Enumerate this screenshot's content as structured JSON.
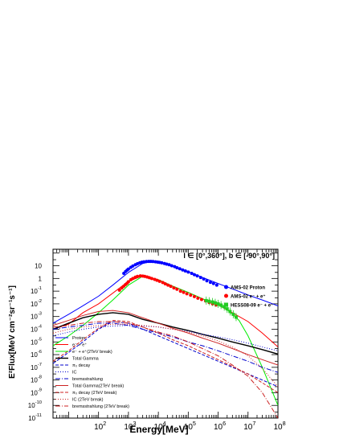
{
  "chart_data": {
    "type": "line",
    "title": "l ∈ [0°,360°], b ∈ [-90°,90°]",
    "xlabel": "Energy[MeV]",
    "ylabel": "E²Flux[MeV cm⁻²sr⁻¹s⁻¹]",
    "xscale": "log",
    "yscale": "log",
    "xlim": [
      3,
      100000000
    ],
    "ylim": [
      1e-11,
      200
    ],
    "x_ticks": [
      {
        "value": 100,
        "base": "10",
        "exp": "2"
      },
      {
        "value": 1000,
        "base": "10",
        "exp": "3"
      },
      {
        "value": 10000,
        "base": "10",
        "exp": "4"
      },
      {
        "value": 100000,
        "base": "10",
        "exp": "5"
      },
      {
        "value": 1000000,
        "base": "10",
        "exp": "6"
      },
      {
        "value": 10000000,
        "base": "10",
        "exp": "7"
      },
      {
        "value": 100000000,
        "base": "10",
        "exp": "8"
      }
    ],
    "y_ticks": [
      {
        "value": 10,
        "base": "10",
        "exp": ""
      },
      {
        "value": 1,
        "base": "1",
        "exp": ""
      },
      {
        "value": 0.1,
        "base": "10",
        "exp": "-1"
      },
      {
        "value": 0.01,
        "base": "10",
        "exp": "-2"
      },
      {
        "value": 0.001,
        "base": "10",
        "exp": "-3"
      },
      {
        "value": 0.0001,
        "base": "10",
        "exp": "-4"
      },
      {
        "value": 1e-05,
        "base": "10",
        "exp": "-5"
      },
      {
        "value": 1e-06,
        "base": "10",
        "exp": "-6"
      },
      {
        "value": 1e-07,
        "base": "10",
        "exp": "-7"
      },
      {
        "value": 1e-08,
        "base": "10",
        "exp": "-8"
      },
      {
        "value": 1e-09,
        "base": "10",
        "exp": "-9"
      },
      {
        "value": 1e-10,
        "base": "10",
        "exp": "-10"
      },
      {
        "value": 1e-11,
        "base": "10",
        "exp": "-11"
      }
    ],
    "grid": false,
    "legend_placement": "bottom-left",
    "series": [
      {
        "name": "Proton",
        "color": "#0000ff",
        "dash": "",
        "width": 1,
        "x": [
          3,
          10,
          30,
          100,
          300,
          1000,
          3000,
          6000,
          10000,
          30000,
          100000,
          300000,
          1000000,
          3000000,
          10000000,
          30000000,
          100000000
        ],
        "y": [
          0.0003,
          0.0015,
          0.007,
          0.04,
          0.3,
          3,
          15,
          22,
          20,
          10,
          3.5,
          1.2,
          0.4,
          0.15,
          0.05,
          0.02,
          0.007
        ]
      },
      {
        "name": "e⁻ + e⁺",
        "color": "#ff0000",
        "dash": "",
        "width": 1,
        "x": [
          3,
          10,
          30,
          100,
          300,
          1000,
          3000,
          10000,
          30000,
          100000,
          300000,
          1000000,
          3000000,
          10000000,
          30000000,
          100000000
        ],
        "y": [
          0.0001,
          0.00025,
          0.002,
          0.01,
          0.07,
          0.6,
          1.6,
          0.8,
          0.25,
          0.08,
          0.025,
          0.008,
          0.002,
          0.0004,
          5e-05,
          4e-06
        ]
      },
      {
        "name": "e⁻ + e⁺(2TeV break)",
        "color": "#00ee00",
        "dash": "",
        "width": 1,
        "x": [
          3,
          10,
          30,
          100,
          300,
          1000,
          3000,
          10000,
          30000,
          100000,
          300000,
          1000000,
          2000000,
          5000000,
          10000000,
          30000000,
          100000000
        ],
        "y": [
          5e-06,
          3e-05,
          0.0002,
          0.002,
          0.02,
          0.3,
          1.5,
          0.8,
          0.25,
          0.08,
          0.025,
          0.008,
          0.0035,
          0.0005,
          3e-05,
          1e-07,
          1e-10
        ]
      },
      {
        "name": "Total Gamma",
        "color": "#000000",
        "dash": "",
        "width": 1.4,
        "x": [
          3,
          10,
          30,
          100,
          300,
          1000,
          3000,
          10000,
          30000,
          100000,
          300000,
          1000000,
          3000000,
          10000000,
          30000000,
          100000000
        ],
        "y": [
          0.0001,
          0.0003,
          0.0008,
          0.0015,
          0.002,
          0.0015,
          0.0006,
          0.0003,
          0.00015,
          8e-05,
          4e-05,
          2e-05,
          1e-05,
          5e-06,
          2.5e-06,
          1.1e-06
        ]
      },
      {
        "name": "π₀ decay",
        "color": "#0000cc",
        "dash": "4,2",
        "width": 1,
        "x": [
          3,
          10,
          30,
          100,
          300,
          1000,
          3000,
          10000,
          30000,
          100000,
          300000,
          1000000,
          3000000,
          10000000,
          30000000,
          100000000
        ],
        "y": [
          2e-07,
          1.5e-06,
          1e-05,
          0.0001,
          0.0004,
          0.0003,
          0.0001,
          3e-05,
          1e-05,
          3e-06,
          1e-06,
          3e-07,
          1e-07,
          3e-08,
          1e-08,
          3e-09
        ]
      },
      {
        "name": "IC",
        "color": "#0000cc",
        "dash": "1,2",
        "width": 1,
        "x": [
          3,
          10,
          30,
          100,
          300,
          1000,
          3000,
          10000,
          30000,
          100000,
          300000,
          1000000,
          3000000,
          10000000,
          30000000,
          100000000
        ],
        "y": [
          3e-05,
          6e-05,
          0.0001,
          0.00015,
          0.00018,
          0.0002,
          0.00018,
          0.00015,
          0.0001,
          7e-05,
          4e-05,
          2.5e-05,
          1.5e-05,
          8e-06,
          4e-06,
          2e-06
        ]
      },
      {
        "name": "bremsstrahlung",
        "color": "#0000cc",
        "dash": "6,2,1,2",
        "width": 1,
        "x": [
          3,
          10,
          30,
          100,
          300,
          1000,
          3000,
          10000,
          30000,
          100000,
          300000,
          1000000,
          3000000,
          10000000,
          30000000,
          100000000
        ],
        "y": [
          0.0001,
          0.00015,
          0.0002,
          0.0003,
          0.0003,
          0.0002,
          0.0001,
          5e-05,
          2.5e-05,
          1e-05,
          5e-06,
          2e-06,
          8e-07,
          3e-07,
          1e-07,
          4e-08
        ]
      },
      {
        "name": "Total Gamma(2TeV break)",
        "color": "#cc2222",
        "dash": "",
        "width": 1,
        "x": [
          3,
          10,
          30,
          100,
          300,
          1000,
          3000,
          10000,
          30000,
          100000,
          300000,
          1000000,
          3000000,
          10000000,
          30000000,
          100000000
        ],
        "y": [
          0.0002,
          0.0005,
          0.0012,
          0.0025,
          0.003,
          0.002,
          0.0008,
          0.0003,
          0.00012,
          5e-05,
          2e-05,
          8e-06,
          3e-06,
          1e-06,
          4e-07,
          1.5e-07
        ]
      },
      {
        "name": "π₀ decay (2TeV break)",
        "color": "#cc2222",
        "dash": "4,2",
        "width": 1,
        "x": [
          3,
          10,
          30,
          100,
          300,
          1000,
          3000,
          10000,
          30000,
          100000,
          300000,
          1000000,
          3000000,
          10000000,
          30000000,
          100000000
        ],
        "y": [
          3e-07,
          2e-06,
          1.5e-05,
          0.00012,
          0.0005,
          0.0004,
          0.00015,
          5e-05,
          1.5e-05,
          5e-06,
          1.5e-06,
          4e-07,
          1.2e-07,
          3e-08,
          6e-09,
          1e-09
        ]
      },
      {
        "name": "IC (2TeV break)",
        "color": "#cc2222",
        "dash": "1,2",
        "width": 1,
        "x": [
          3,
          10,
          30,
          100,
          300,
          1000,
          3000,
          10000,
          30000,
          100000,
          300000,
          1000000,
          3000000,
          10000000,
          30000000,
          100000000
        ],
        "y": [
          5e-05,
          0.0001,
          0.00015,
          0.0002,
          0.00025,
          0.00025,
          0.0002,
          0.00015,
          0.0001,
          6e-05,
          3e-05,
          1.2e-05,
          4e-06,
          8e-07,
          8e-08,
          3e-09
        ]
      },
      {
        "name": "bremsstrahlung (2TeV break)",
        "color": "#cc2222",
        "dash": "6,2,1,2",
        "width": 1,
        "x": [
          3,
          10,
          30,
          100,
          300,
          1000,
          3000,
          10000,
          30000,
          100000,
          300000,
          1000000,
          3000000,
          10000000,
          30000000,
          100000000
        ],
        "y": [
          0.00015,
          0.0002,
          0.0003,
          0.0004,
          0.0004,
          0.0003,
          0.00015,
          6e-05,
          3e-05,
          1e-05,
          3e-06,
          8e-07,
          1.5e-07,
          2e-08,
          1e-09,
          1e-11
        ]
      }
    ],
    "data_points": [
      {
        "name": "AMS-02 Proton",
        "color": "#0000ff",
        "marker": "circle",
        "x": [
          700,
          800,
          900,
          1000,
          1200,
          1400,
          1700,
          2000,
          2400,
          2800,
          3300,
          4000,
          4800,
          5600,
          6600,
          8000,
          9500,
          11000,
          13000,
          16000,
          19000,
          23000,
          28000,
          35000,
          42000,
          52000,
          65000,
          80000,
          100000,
          130000,
          160000,
          200000,
          260000,
          330000,
          420000,
          550000,
          700000,
          900000
        ],
        "y": [
          2.5,
          3.5,
          4.5,
          5.5,
          7.5,
          9.5,
          12,
          14.5,
          17,
          19,
          20.5,
          21.5,
          22,
          22,
          21.5,
          20.5,
          19.5,
          18.5,
          17,
          15,
          13.5,
          12,
          10,
          8.5,
          7,
          5.8,
          4.7,
          3.9,
          3.2,
          2.5,
          2,
          1.6,
          1.2,
          0.9,
          0.65,
          0.5,
          0.4,
          0.3
        ]
      },
      {
        "name": "AMS-02 e⁻ + e⁺",
        "color": "#ff0000",
        "marker": "circle",
        "x": [
          500,
          600,
          700,
          800,
          900,
          1000,
          1200,
          1400,
          1700,
          2000,
          2500,
          3000,
          3500,
          4200,
          5000,
          6000,
          7500,
          9000,
          11000,
          14000,
          17000,
          21000,
          26000,
          33000,
          42000,
          55000,
          70000,
          90000,
          120000,
          160000,
          210000,
          280000,
          380000,
          500000,
          650000,
          850000
        ],
        "y": [
          0.12,
          0.18,
          0.25,
          0.33,
          0.42,
          0.55,
          0.8,
          1,
          1.25,
          1.45,
          1.6,
          1.55,
          1.45,
          1.3,
          1.15,
          1,
          0.85,
          0.72,
          0.6,
          0.48,
          0.38,
          0.3,
          0.24,
          0.18,
          0.14,
          0.1,
          0.08,
          0.062,
          0.048,
          0.037,
          0.028,
          0.022,
          0.017,
          0.013,
          0.01,
          0.008
        ]
      },
      {
        "name": "HESS08-09 e⁻ + e⁺",
        "color": "#22cc22",
        "marker": "square",
        "x": [
          400000,
          500000,
          650000,
          800000,
          1000000,
          1250000,
          1600000,
          2000000,
          2500000,
          3200000,
          4000000
        ],
        "y": [
          0.018,
          0.016,
          0.014,
          0.012,
          0.01,
          0.008,
          0.006,
          0.004,
          0.0025,
          0.0015,
          0.0009
        ]
      }
    ]
  }
}
